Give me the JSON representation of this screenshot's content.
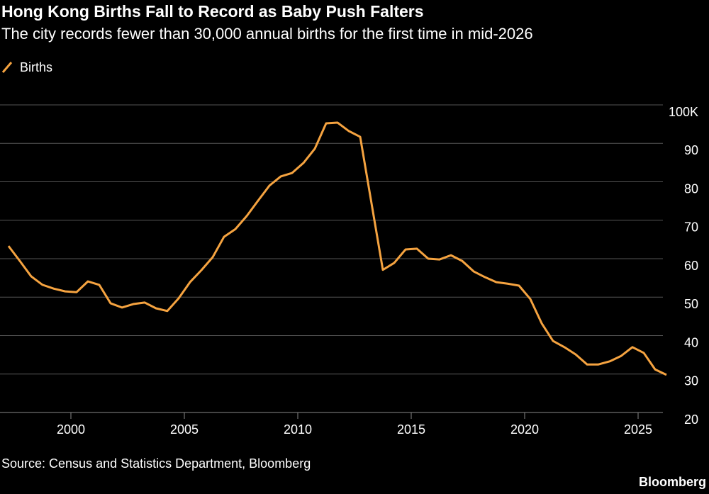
{
  "chart_data": {
    "type": "line",
    "title": "Hong Kong Births Fall to Record as Baby Push Falters",
    "subtitle": "The city records fewer than 30,000 annual births for the first time in mid-2026",
    "source": "Source: Census and Statistics Department, Bloomberg",
    "brand": "Bloomberg",
    "x": [
      1997.25,
      1997.75,
      1998.25,
      1998.75,
      1999.25,
      1999.75,
      2000.25,
      2000.75,
      2001.25,
      2001.75,
      2002.25,
      2002.75,
      2003.25,
      2003.75,
      2004.25,
      2004.75,
      2005.25,
      2005.75,
      2006.25,
      2006.75,
      2007.25,
      2007.75,
      2008.25,
      2008.75,
      2009.25,
      2009.75,
      2010.25,
      2010.75,
      2011.25,
      2011.75,
      2012.25,
      2012.75,
      2013.75,
      2014.25,
      2014.75,
      2015.25,
      2015.75,
      2016.25,
      2016.75,
      2017.25,
      2017.75,
      2018.25,
      2018.75,
      2019.25,
      2019.75,
      2020.25,
      2020.75,
      2021.25,
      2021.75,
      2022.25,
      2022.75,
      2023.25,
      2023.75,
      2024.25,
      2024.75,
      2025.25,
      2025.75,
      2026.25
    ],
    "series": [
      {
        "name": "Births",
        "color": "#f5a340",
        "values": [
          63.3,
          59.4,
          55.4,
          53.2,
          52.2,
          51.5,
          51.3,
          54.1,
          53.2,
          48.4,
          47.3,
          48.2,
          48.6,
          47.1,
          46.4,
          49.7,
          53.9,
          57.0,
          60.4,
          65.7,
          67.7,
          71.1,
          75.1,
          79.0,
          81.4,
          82.3,
          84.9,
          88.6,
          95.2,
          95.4,
          93.2,
          91.7,
          57.1,
          58.9,
          62.4,
          62.6,
          60.0,
          59.8,
          60.9,
          59.4,
          56.7,
          55.2,
          53.9,
          53.5,
          53.0,
          49.5,
          43.2,
          38.6,
          37.0,
          35.1,
          32.5,
          32.5,
          33.3,
          34.7,
          37.0,
          35.5,
          31.2,
          29.8
        ]
      }
    ],
    "xlim": [
      1996.875,
      2026.875
    ],
    "xticks": [
      2000,
      2005,
      2010,
      2015,
      2020,
      2025
    ],
    "ylim": [
      20,
      100
    ],
    "yticks": [
      20,
      30,
      40,
      50,
      60,
      70,
      80,
      90,
      {
        "value": 100,
        "label": "100K"
      }
    ],
    "grid": true
  }
}
